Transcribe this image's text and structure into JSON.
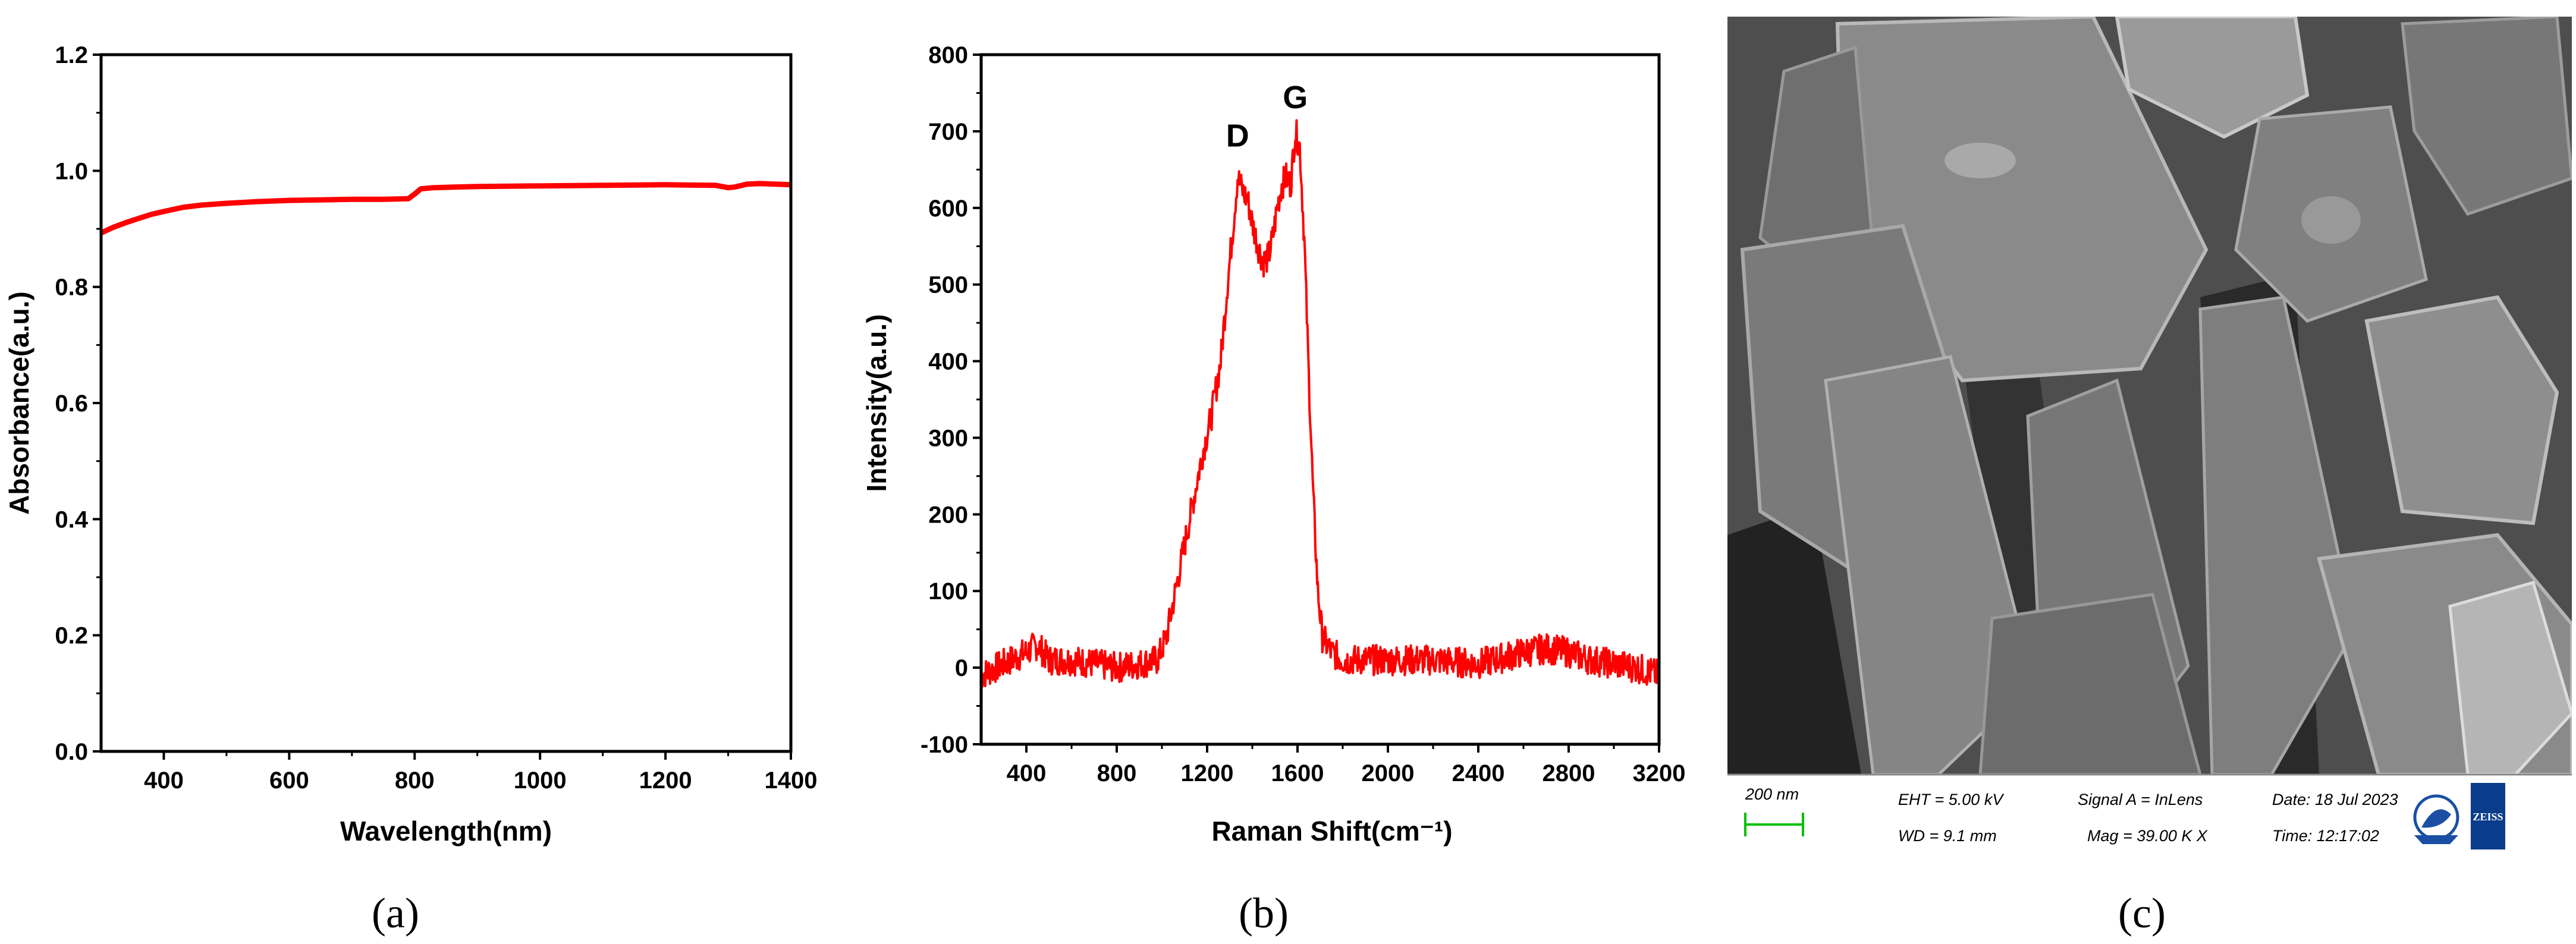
{
  "colors": {
    "series": "#ff0000",
    "axis": "#000000",
    "scale_bar": "#00c000",
    "sem_bg": "#5a5a5a"
  },
  "chart_data": [
    {
      "panel": "a",
      "type": "line",
      "title": "",
      "xlabel": "Wavelength(nm)",
      "ylabel": "Absorbance(a.u.)",
      "xlim": [
        300,
        1400
      ],
      "ylim": [
        0.0,
        1.2
      ],
      "xticks": [
        400,
        600,
        800,
        1000,
        1200,
        1400
      ],
      "xtick_labels": [
        "400",
        "600",
        "800",
        "1000",
        "1200",
        "1400"
      ],
      "yticks": [
        0.0,
        0.2,
        0.4,
        0.6,
        0.8,
        1.0,
        1.2
      ],
      "ytick_labels": [
        "0.0",
        "0.2",
        "0.4",
        "0.6",
        "0.8",
        "1.0",
        "1.2"
      ],
      "series": [
        {
          "name": "Absorbance",
          "x": [
            300,
            320,
            340,
            360,
            380,
            400,
            430,
            460,
            500,
            550,
            600,
            650,
            700,
            750,
            790,
            800,
            810,
            830,
            900,
            1000,
            1100,
            1200,
            1280,
            1300,
            1310,
            1330,
            1350,
            1400
          ],
          "y": [
            0.893,
            0.903,
            0.911,
            0.918,
            0.925,
            0.93,
            0.937,
            0.941,
            0.944,
            0.947,
            0.949,
            0.95,
            0.951,
            0.951,
            0.952,
            0.96,
            0.969,
            0.971,
            0.973,
            0.974,
            0.975,
            0.976,
            0.975,
            0.971,
            0.972,
            0.977,
            0.978,
            0.976
          ]
        }
      ]
    },
    {
      "panel": "b",
      "type": "line",
      "title": "",
      "xlabel": "Raman Shift(cm⁻¹)",
      "ylabel": "Intensity(a.u.)",
      "xlim": [
        200,
        3200
      ],
      "ylim": [
        -100,
        800
      ],
      "xticks": [
        400,
        800,
        1200,
        1600,
        2000,
        2400,
        2800,
        3200
      ],
      "xtick_labels": [
        "400",
        "800",
        "1200",
        "1600",
        "2000",
        "2400",
        "2800",
        "3200"
      ],
      "yticks": [
        -100,
        0,
        100,
        200,
        300,
        400,
        500,
        600,
        700,
        800
      ],
      "ytick_labels": [
        "-100",
        "0",
        "100",
        "200",
        "300",
        "400",
        "500",
        "600",
        "700",
        "800"
      ],
      "annotations": [
        {
          "text": "D",
          "x": 1335,
          "y": 680
        },
        {
          "text": "G",
          "x": 1590,
          "y": 730
        }
      ],
      "series": [
        {
          "name": "Raman",
          "x": [
            200,
            300,
            400,
            450,
            500,
            600,
            700,
            800,
            900,
            980,
            1020,
            1060,
            1100,
            1140,
            1180,
            1220,
            1260,
            1290,
            1310,
            1335,
            1360,
            1380,
            1400,
            1430,
            1450,
            1470,
            1490,
            1510,
            1530,
            1550,
            1570,
            1590,
            1610,
            1630,
            1650,
            1670,
            1690,
            1710,
            1750,
            1800,
            2000,
            2200,
            2400,
            2600,
            2700,
            2800,
            2900,
            3000,
            3100,
            3200
          ],
          "y": [
            -10,
            5,
            20,
            30,
            10,
            10,
            5,
            0,
            5,
            10,
            40,
            100,
            160,
            220,
            280,
            330,
            400,
            500,
            560,
            640,
            620,
            610,
            580,
            545,
            530,
            535,
            560,
            600,
            630,
            640,
            630,
            700,
            680,
            560,
            380,
            220,
            100,
            40,
            20,
            10,
            10,
            10,
            5,
            20,
            25,
            20,
            10,
            5,
            0,
            -10
          ]
        }
      ]
    }
  ],
  "figure_c": {
    "type": "image",
    "info_bar": {
      "scale_label": "200 nm",
      "eht": "EHT = 5.00 kV",
      "wd": "WD = 9.1 mm",
      "signal": "Signal A = InLens",
      "mag": "Mag = 39.00 K X",
      "date": "Date: 18 Jul 2023",
      "time": "Time: 12:17:02",
      "logo_text": "ZEISS"
    }
  },
  "captions": {
    "a": "(a)",
    "b": "(b)",
    "c": "(c)"
  }
}
